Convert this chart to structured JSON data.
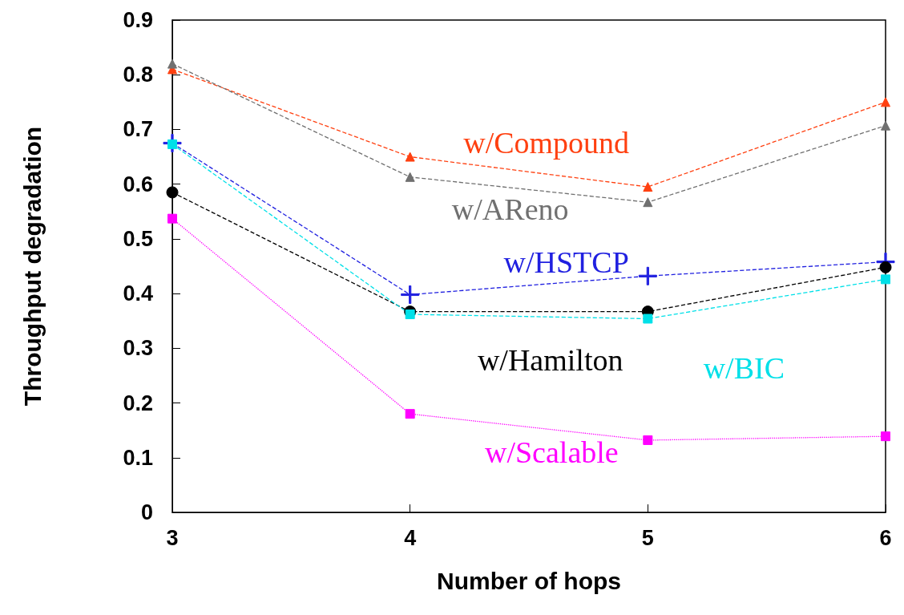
{
  "chart_data": {
    "type": "line",
    "xlabel": "Number of hops",
    "ylabel": "Throughput degradation",
    "x": [
      3,
      4,
      5,
      6
    ],
    "xlim": [
      3,
      6
    ],
    "xticks": [
      3,
      4,
      5,
      6
    ],
    "ylim": [
      0,
      0.9
    ],
    "yticks": [
      0,
      0.1,
      0.2,
      0.3,
      0.4,
      0.5,
      0.6,
      0.7,
      0.8,
      0.9
    ],
    "grid": false,
    "line_style": "dashed",
    "series": [
      {
        "name": "w/Compound",
        "color": "#ff4010",
        "marker": "triangle",
        "values": [
          0.81,
          0.65,
          0.595,
          0.75
        ]
      },
      {
        "name": "w/AReno",
        "color": "#707070",
        "marker": "triangle",
        "values": [
          0.82,
          0.613,
          0.567,
          0.707
        ]
      },
      {
        "name": "w/HSTCP",
        "color": "#2020e0",
        "marker": "cross",
        "values": [
          0.675,
          0.398,
          0.432,
          0.458
        ]
      },
      {
        "name": "w/Hamilton",
        "color": "#000000",
        "marker": "circle",
        "values": [
          0.585,
          0.367,
          0.367,
          0.448
        ]
      },
      {
        "name": "w/BIC",
        "color": "#00e0e8",
        "marker": "square",
        "values": [
          0.673,
          0.362,
          0.354,
          0.426
        ]
      },
      {
        "name": "w/Scalable",
        "color": "#ff00ff",
        "marker": "square",
        "line_style": "dotted",
        "values": [
          0.537,
          0.18,
          0.132,
          0.139
        ]
      }
    ]
  }
}
